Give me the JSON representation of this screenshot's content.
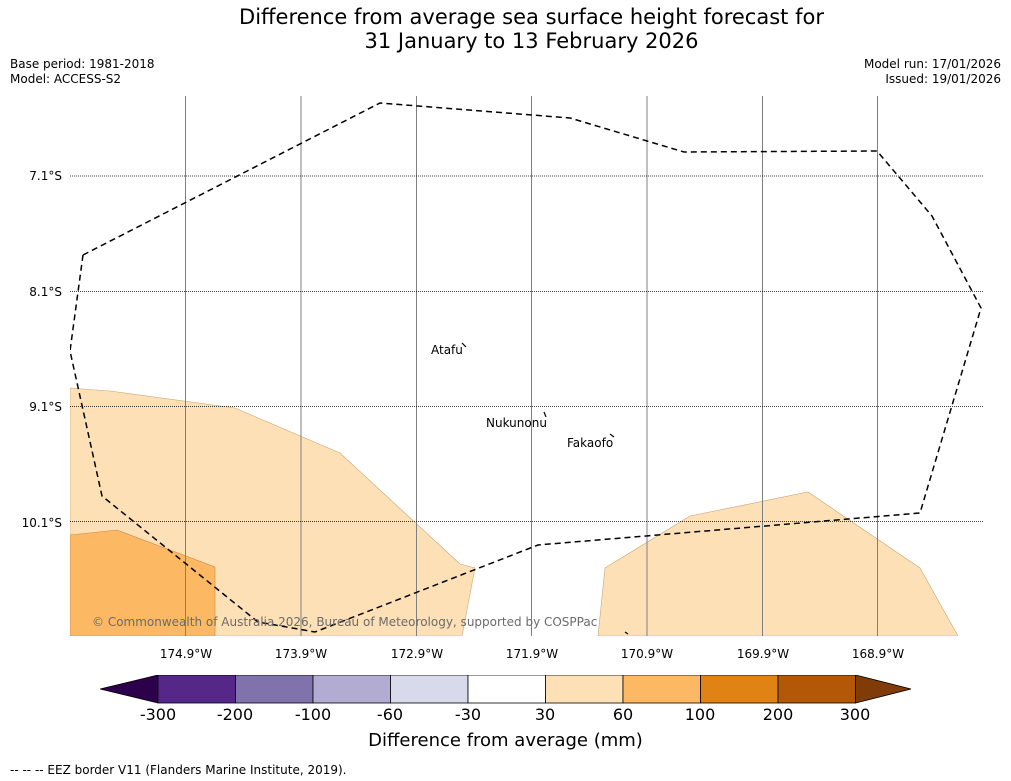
{
  "title_line1": "Difference from average sea surface height forecast for",
  "title_line2": "31 January to 13 February 2026",
  "base_period": "Base period: 1981-2018",
  "model": "Model: ACCESS-S2",
  "model_run": "Model run: 17/01/2026",
  "issued": "Issued: 19/01/2026",
  "lat_labels": [
    "7.1°S",
    "8.1°S",
    "9.1°S",
    "10.1°S"
  ],
  "lon_labels": [
    "174.9°W",
    "173.9°W",
    "172.9°W",
    "171.9°W",
    "170.9°W",
    "169.9°W",
    "168.9°W"
  ],
  "places": {
    "atafu": "Atafu",
    "nukunonu": "Nukunonu",
    "fakaofo": "Fakaofo"
  },
  "copyright": "© Commonwealth of Australia 2026, Bureau of Meteorology, supported by COSPPac",
  "colorbar": {
    "title": "Difference from average (mm)",
    "ticks": [
      "-300",
      "-200",
      "-100",
      "-60",
      "-30",
      "30",
      "60",
      "100",
      "200",
      "300"
    ],
    "colors": [
      "#2d004b",
      "#542788",
      "#8073ac",
      "#b2abd2",
      "#d8daeb",
      "#ffffff",
      "#fee0b6",
      "#fdb863",
      "#e08214",
      "#b35806",
      "#7f3b08"
    ]
  },
  "footnote": "--  --  -- EEZ border V11 (Flanders Marine Institute, 2019)."
}
